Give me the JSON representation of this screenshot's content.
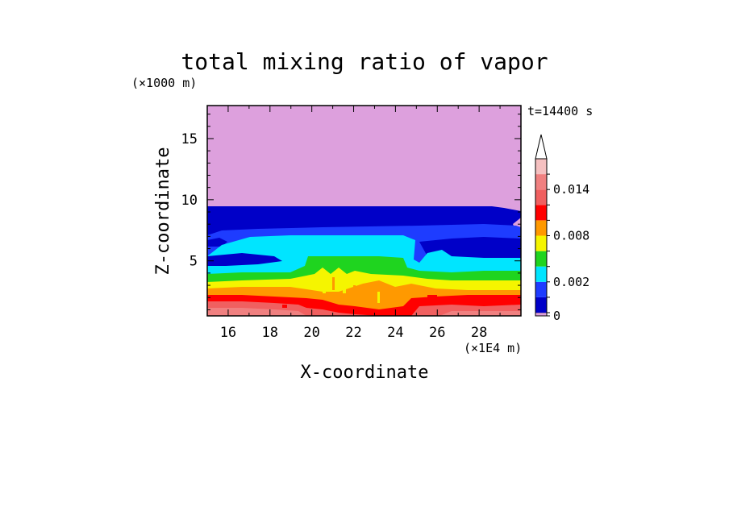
{
  "chart_data": {
    "type": "heatmap",
    "title": "total mixing ratio of vapor",
    "xlabel": "X-coordinate",
    "ylabel": "Z-coordinate",
    "x_unit": "(×1E4 m)",
    "y_unit": "(×1000 m)",
    "time_label": "t=14400 s",
    "xlim": [
      15,
      30
    ],
    "ylim": [
      0.5,
      17.7
    ],
    "x_ticks": [
      "16",
      "18",
      "20",
      "22",
      "24",
      "26",
      "28"
    ],
    "x_tick_values": [
      16,
      18,
      20,
      22,
      24,
      26,
      28
    ],
    "y_ticks": [
      "5",
      "10",
      "15"
    ],
    "y_tick_values": [
      5,
      10,
      15
    ],
    "colorbar": {
      "labels": [
        "0",
        "0.002",
        "0.008",
        "0.014"
      ],
      "label_values": [
        0,
        0.002,
        0.008,
        0.014
      ],
      "levels": [
        0,
        0.0001,
        0.001,
        0.002,
        0.004,
        0.006,
        0.008,
        0.01,
        0.012,
        0.014,
        0.016
      ],
      "colors": [
        "#dda0dd",
        "#0000c8",
        "#1e3cff",
        "#00e5ff",
        "#1fd41f",
        "#f5f500",
        "#ff9900",
        "#ff0000",
        "#f06060",
        "#f08080",
        "#f5c0c0"
      ],
      "extend": "max"
    },
    "bands": [
      {
        "name": "0-0.0001",
        "z_top": 17.7,
        "color": "#dda0dd"
      },
      {
        "name": "0.0001-0.001",
        "z_top": 9.3,
        "color": "#0000c8"
      },
      {
        "name": "0.001-0.002",
        "z_top": 8.0,
        "color": "#1e3cff"
      },
      {
        "name": "0.002-0.004",
        "z_top": 6.8,
        "color": "#00e5ff"
      },
      {
        "name": "0.004-0.006",
        "z_top": 5.0,
        "color": "#1fd41f"
      },
      {
        "name": "0.006-0.008",
        "z_top": 3.6,
        "color": "#f5f500"
      },
      {
        "name": "0.008-0.010",
        "z_top": 3.0,
        "color": "#ff9900"
      },
      {
        "name": "0.010-0.012",
        "z_top": 2.2,
        "color": "#ff0000"
      },
      {
        "name": "0.012-0.014",
        "z_top": 1.6,
        "color": "#f06060"
      }
    ]
  }
}
